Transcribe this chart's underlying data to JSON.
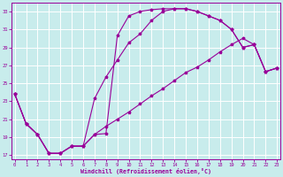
{
  "bg_color": "#c8ecec",
  "grid_color": "#ffffff",
  "line_color": "#990099",
  "xlim_min": -0.3,
  "xlim_max": 23.3,
  "ylim_min": 16.5,
  "ylim_max": 34.0,
  "xticks": [
    0,
    1,
    2,
    3,
    4,
    5,
    6,
    7,
    8,
    9,
    10,
    11,
    12,
    13,
    14,
    15,
    16,
    17,
    18,
    19,
    20,
    21,
    22,
    23
  ],
  "yticks": [
    17,
    19,
    21,
    23,
    25,
    27,
    29,
    31,
    33
  ],
  "xlabel": "Windchill (Refroidissement éolien,°C)",
  "curve1_x": [
    0,
    1,
    2,
    3,
    4,
    5,
    6,
    7,
    8,
    9,
    10,
    11,
    12,
    13,
    14,
    15,
    16,
    17,
    18,
    19,
    20,
    21,
    22,
    23
  ],
  "curve1_y": [
    23.8,
    20.5,
    19.3,
    17.2,
    17.2,
    18.0,
    18.0,
    19.3,
    19.4,
    30.3,
    32.5,
    33.0,
    33.2,
    33.3,
    33.3,
    33.3,
    33.0,
    32.5,
    32.0,
    31.0,
    29.0,
    29.3,
    26.3,
    26.7
  ],
  "curve2_x": [
    0,
    1,
    2,
    3,
    4,
    5,
    6,
    7,
    8,
    9,
    10,
    11,
    12,
    13,
    14,
    15,
    16,
    17,
    18,
    19,
    20,
    21,
    22,
    23
  ],
  "curve2_y": [
    23.8,
    20.5,
    19.3,
    17.2,
    17.2,
    18.0,
    18.0,
    23.3,
    25.7,
    27.6,
    29.5,
    30.5,
    32.0,
    33.0,
    33.3,
    33.3,
    33.0,
    32.5,
    32.0,
    31.0,
    29.0,
    29.3,
    26.3,
    26.7
  ],
  "curve3_x": [
    0,
    1,
    2,
    3,
    4,
    5,
    6,
    7,
    8,
    9,
    10,
    11,
    12,
    13,
    14,
    15,
    16,
    17,
    18,
    19,
    20,
    21,
    22,
    23
  ],
  "curve3_y": [
    23.8,
    20.5,
    19.3,
    17.2,
    17.2,
    18.0,
    18.0,
    19.3,
    20.2,
    21.0,
    21.8,
    22.7,
    23.6,
    24.4,
    25.3,
    26.2,
    26.8,
    27.6,
    28.5,
    29.3,
    30.0,
    29.3,
    26.3,
    26.7
  ]
}
